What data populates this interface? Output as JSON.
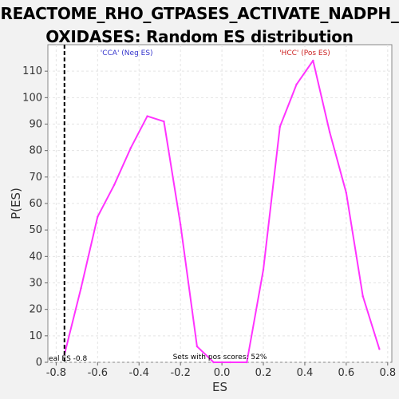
{
  "chart_data": {
    "type": "line",
    "title": "REACTOME_RHO_GTPASES_ACTIVATE_NADPH_OXIDASES: Random ES distribution",
    "title_lines": [
      "REACTOME_RHO_GTPASES_ACTIVATE_NADPH_",
      "OXIDASES: Random ES distribution"
    ],
    "xlabel": "ES",
    "ylabel": "P(ES)",
    "xlim": [
      -0.84,
      0.82
    ],
    "ylim": [
      0,
      120
    ],
    "x_ticks": [
      -0.8,
      -0.6,
      -0.4,
      -0.2,
      0.0,
      0.2,
      0.4,
      0.6,
      0.8
    ],
    "x_tick_labels": [
      "-0.8",
      "-0.6",
      "-0.4",
      "-0.2",
      "0.0",
      "0.2",
      "0.4",
      "0.6",
      "0.8"
    ],
    "y_ticks": [
      0,
      10,
      20,
      30,
      40,
      50,
      60,
      70,
      80,
      90,
      100,
      110
    ],
    "grid": true,
    "series": [
      {
        "color": "#ff33ff",
        "x": [
          -0.76,
          -0.68,
          -0.6,
          -0.52,
          -0.44,
          -0.36,
          -0.28,
          -0.2,
          -0.12,
          -0.04,
          0.04,
          0.12,
          0.2,
          0.28,
          0.36,
          0.44,
          0.52,
          0.6,
          0.68,
          0.76
        ],
        "y": [
          3,
          28,
          55,
          67,
          81,
          93,
          91,
          52,
          6,
          0,
          0,
          0,
          35,
          89,
          105,
          114,
          87,
          64,
          25,
          5
        ]
      }
    ],
    "reference_line": {
      "x": -0.76,
      "label": "eal ES -0.8",
      "color": "#000000"
    },
    "annotations": {
      "neg": {
        "text": "'CCA' (Neg ES)",
        "color": "#3333cc"
      },
      "pos": {
        "text": "'HCC' (Pos ES)",
        "color": "#cc2222"
      },
      "pos_scores": "Sets with pos scores: 52%"
    }
  }
}
